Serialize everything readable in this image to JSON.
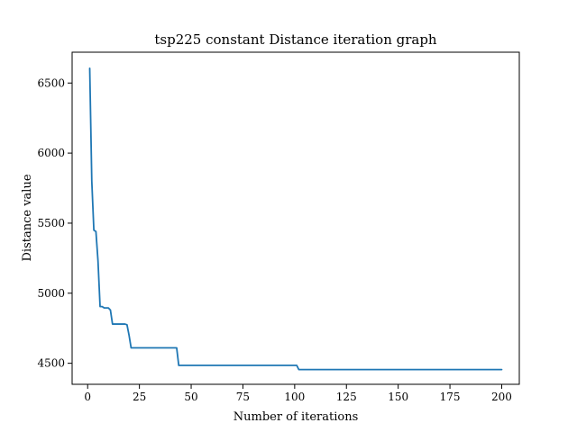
{
  "chart_data": {
    "type": "line",
    "title": "tsp225 constant Distance iteration graph",
    "xlabel": "Number of iterations",
    "ylabel": "Distance value",
    "xlim": [
      -7.5,
      208.5
    ],
    "ylim": [
      4350,
      6720
    ],
    "grid": false,
    "x_ticks": [
      0,
      25,
      50,
      75,
      100,
      125,
      150,
      175,
      200
    ],
    "y_ticks": [
      4500,
      5000,
      5500,
      6000,
      6500
    ],
    "series": [
      {
        "color": "#1f77b4",
        "x": [
          1,
          2,
          3,
          4,
          5,
          6,
          7,
          8,
          10,
          11,
          12,
          13,
          18,
          19,
          20,
          21,
          42,
          43,
          44,
          45,
          100,
          101,
          102,
          103,
          200
        ],
        "y": [
          6605,
          5800,
          5450,
          5440,
          5230,
          4905,
          4905,
          4895,
          4895,
          4880,
          4780,
          4780,
          4780,
          4775,
          4700,
          4610,
          4610,
          4610,
          4485,
          4485,
          4485,
          4485,
          4455,
          4455,
          4455
        ]
      }
    ]
  }
}
